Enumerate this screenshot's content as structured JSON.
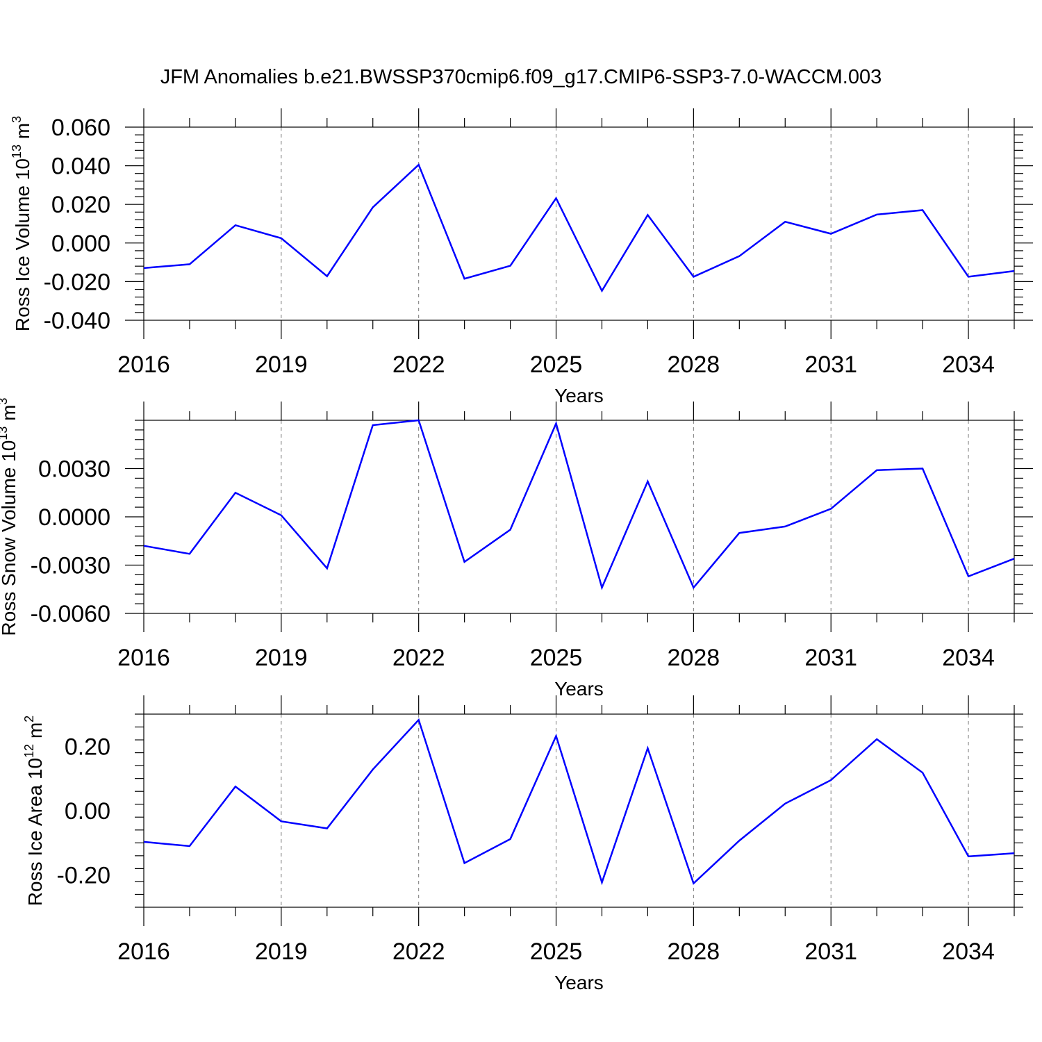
{
  "figure": {
    "title": "JFM Anomalies b.e21.BWSSP370cmip6.f09_g17.CMIP6-SSP3-7.0-WACCM.003"
  },
  "colors": {
    "line": "#0000ff",
    "grid": "#7a7a7a",
    "axis": "#000000"
  },
  "chart_data": [
    {
      "id": "ice-volume",
      "type": "line",
      "title": "",
      "xlabel": "Years",
      "ylabel": "Ross Ice Volume 10",
      "ylabel_exp": "13",
      "ylabel_unit": " m",
      "ylabel_unit_exp": "3",
      "xlim": [
        2016,
        2035
      ],
      "ylim": [
        -0.04,
        0.06
      ],
      "yticks": [
        -0.04,
        -0.02,
        0.0,
        0.02,
        0.04,
        0.06
      ],
      "ytick_labels": [
        "-0.040",
        "-0.020",
        "0.000",
        "0.020",
        "0.040",
        "0.060"
      ],
      "xticks": [
        2016,
        2019,
        2022,
        2025,
        2028,
        2031,
        2034
      ],
      "xtick_labels": [
        "2016",
        "2019",
        "2022",
        "2025",
        "2028",
        "2031",
        "2034"
      ],
      "grid": "vertical dashed at labeled years",
      "x": [
        2016,
        2017,
        2018,
        2019,
        2020,
        2021,
        2022,
        2023,
        2024,
        2025,
        2026,
        2027,
        2028,
        2029,
        2030,
        2031,
        2032,
        2033,
        2034,
        2035
      ],
      "series": [
        {
          "values": [
            -0.013,
            -0.011,
            0.0092,
            0.0025,
            -0.0172,
            0.0185,
            0.0405,
            -0.0185,
            -0.0118,
            0.0232,
            -0.0248,
            0.0145,
            -0.0175,
            -0.0068,
            0.011,
            0.0048,
            0.0147,
            0.017,
            -0.0175,
            -0.0145
          ]
        }
      ]
    },
    {
      "id": "snow-volume",
      "type": "line",
      "title": "",
      "xlabel": "Years",
      "ylabel": "Ross Snow Volume 10",
      "ylabel_exp": "13",
      "ylabel_unit": " m",
      "ylabel_unit_exp": "3",
      "xlim": [
        2016,
        2035
      ],
      "ylim": [
        -0.006,
        0.006
      ],
      "yticks": [
        -0.006,
        -0.003,
        0.0,
        0.003
      ],
      "ytick_labels": [
        "-0.0060",
        "-0.0030",
        "0.0000",
        "0.0030"
      ],
      "xticks": [
        2016,
        2019,
        2022,
        2025,
        2028,
        2031,
        2034
      ],
      "xtick_labels": [
        "2016",
        "2019",
        "2022",
        "2025",
        "2028",
        "2031",
        "2034"
      ],
      "grid": "vertical dashed at labeled years",
      "x": [
        2016,
        2017,
        2018,
        2019,
        2020,
        2021,
        2022,
        2023,
        2024,
        2025,
        2026,
        2027,
        2028,
        2029,
        2030,
        2031,
        2032,
        2033,
        2034,
        2035
      ],
      "series": [
        {
          "values": [
            -0.0018,
            -0.0023,
            0.0015,
            0.0001,
            -0.0032,
            0.0057,
            0.006,
            -0.0028,
            -0.0008,
            0.0058,
            -0.0044,
            0.0022,
            -0.0044,
            -0.001,
            -0.0006,
            0.0005,
            0.0029,
            0.003,
            -0.0037,
            -0.0026
          ]
        }
      ]
    },
    {
      "id": "ice-area",
      "type": "line",
      "title": "",
      "xlabel": "Years",
      "ylabel": "Ross Ice Area 10",
      "ylabel_exp": "12",
      "ylabel_unit": " m",
      "ylabel_unit_exp": "2",
      "xlim": [
        2016,
        2035
      ],
      "ylim": [
        -0.3,
        0.3
      ],
      "yticks": [
        -0.2,
        0.0,
        0.2
      ],
      "ytick_labels": [
        "-0.20",
        "0.00",
        "0.20"
      ],
      "xticks": [
        2016,
        2019,
        2022,
        2025,
        2028,
        2031,
        2034
      ],
      "xtick_labels": [
        "2016",
        "2019",
        "2022",
        "2025",
        "2028",
        "2031",
        "2034"
      ],
      "grid": "vertical dashed at labeled years",
      "x": [
        2016,
        2017,
        2018,
        2019,
        2020,
        2021,
        2022,
        2023,
        2024,
        2025,
        2026,
        2027,
        2028,
        2029,
        2030,
        2031,
        2032,
        2033,
        2034,
        2035
      ],
      "series": [
        {
          "values": [
            -0.097,
            -0.11,
            0.075,
            -0.033,
            -0.055,
            0.128,
            0.282,
            -0.163,
            -0.088,
            0.232,
            -0.223,
            0.194,
            -0.226,
            -0.093,
            0.022,
            0.095,
            0.222,
            0.118,
            -0.142,
            -0.132
          ]
        }
      ]
    }
  ]
}
